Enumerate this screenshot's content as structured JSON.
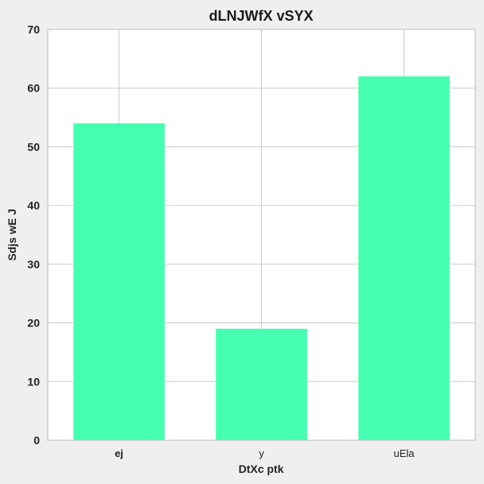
{
  "chart_data": {
    "type": "bar",
    "title": "dLNJWfX vSYX",
    "xlabel": "DtXc ptk",
    "ylabel": "Sdjs  wE J",
    "categories": [
      "ej",
      "y",
      "uEla"
    ],
    "values": [
      54,
      19,
      62
    ],
    "ylim": [
      0,
      70
    ],
    "yticks": [
      0,
      10,
      20,
      30,
      40,
      50,
      60,
      70
    ],
    "grid": true,
    "legend": "none",
    "colors": {
      "bar": "#44ffaf",
      "background": "#ffffff",
      "figure": "#efefef",
      "grid": "#cccccc",
      "axis": "#bcbcbc"
    }
  }
}
